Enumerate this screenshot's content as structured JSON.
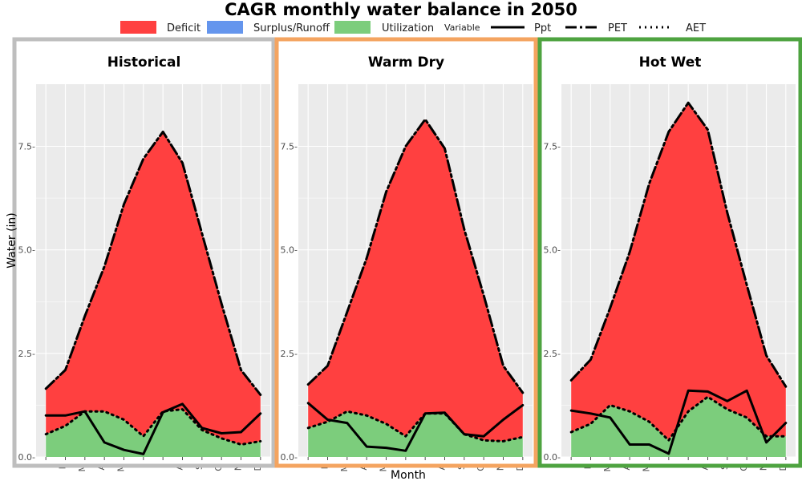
{
  "title": "CAGR monthly water balance in 2050",
  "legend": {
    "fill_items": [
      {
        "label": "Deficit",
        "color": "#ff4040"
      },
      {
        "label": "Surplus/Runoff",
        "color": "#6495ed"
      },
      {
        "label": "Utilization",
        "color": "#7ccd7c"
      }
    ],
    "variable_title": "Variable",
    "line_items": [
      {
        "label": "Ppt",
        "style": "solid"
      },
      {
        "label": "PET",
        "style": "dashdot"
      },
      {
        "label": "AET",
        "style": "dotted"
      }
    ]
  },
  "xlabel": "Month",
  "ylabel": "Water (in)",
  "chart_data": {
    "type": "area",
    "categories": [
      "J",
      "F",
      "M",
      "A",
      "M",
      "J",
      "J",
      "A",
      "S",
      "O",
      "N",
      "D"
    ],
    "ylim": [
      0,
      9
    ],
    "yticks": [
      0.0,
      2.5,
      5.0,
      7.5
    ],
    "ytick_labels": [
      "0.0-",
      "2.5-",
      "5.0-",
      "7.5-"
    ],
    "grid": true,
    "legend_position": "top",
    "panels": [
      {
        "title": "Historical",
        "frame_color": "#bebebe",
        "series": [
          {
            "name": "Ppt",
            "values": [
              1.0,
              1.0,
              1.1,
              0.35,
              0.17,
              0.07,
              1.08,
              1.28,
              0.7,
              0.57,
              0.6,
              1.05
            ]
          },
          {
            "name": "PET",
            "values": [
              1.65,
              2.1,
              3.4,
              4.6,
              6.1,
              7.2,
              7.85,
              7.1,
              5.4,
              3.7,
              2.1,
              1.5
            ]
          },
          {
            "name": "AET",
            "values": [
              0.55,
              0.75,
              1.1,
              1.1,
              0.9,
              0.5,
              1.1,
              1.15,
              0.65,
              0.45,
              0.3,
              0.38
            ]
          }
        ]
      },
      {
        "title": "Warm Dry",
        "frame_color": "#f4a460",
        "series": [
          {
            "name": "Ppt",
            "values": [
              1.3,
              0.9,
              0.82,
              0.25,
              0.22,
              0.15,
              1.05,
              1.07,
              0.55,
              0.5,
              0.9,
              1.25
            ]
          },
          {
            "name": "PET",
            "values": [
              1.75,
              2.2,
              3.5,
              4.8,
              6.4,
              7.5,
              8.15,
              7.45,
              5.5,
              3.9,
              2.2,
              1.55
            ]
          },
          {
            "name": "AET",
            "values": [
              0.7,
              0.85,
              1.1,
              1.0,
              0.8,
              0.5,
              1.05,
              1.05,
              0.55,
              0.4,
              0.38,
              0.48
            ]
          }
        ]
      },
      {
        "title": "Hot Wet",
        "frame_color": "#4ea340",
        "series": [
          {
            "name": "Ppt",
            "values": [
              1.12,
              1.05,
              0.95,
              0.3,
              0.3,
              0.08,
              1.6,
              1.58,
              1.35,
              1.6,
              0.35,
              0.82
            ]
          },
          {
            "name": "PET",
            "values": [
              1.85,
              2.35,
              3.6,
              4.95,
              6.6,
              7.85,
              8.55,
              7.9,
              5.9,
              4.15,
              2.45,
              1.7
            ]
          },
          {
            "name": "AET",
            "values": [
              0.6,
              0.8,
              1.25,
              1.1,
              0.85,
              0.4,
              1.1,
              1.45,
              1.15,
              0.95,
              0.5,
              0.5
            ]
          }
        ]
      }
    ]
  }
}
